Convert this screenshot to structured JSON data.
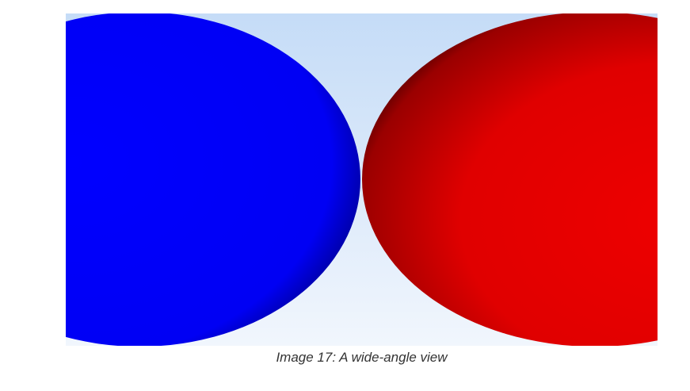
{
  "figure": {
    "caption": "Image 17: A wide-angle view"
  },
  "scene": {
    "sky_top_color": "#c5dcf7",
    "sky_bottom_color": "#f1f6fd",
    "left_sphere_color": "#0000ff",
    "right_sphere_color": "#ee0000",
    "shadow_color": "#000000"
  }
}
